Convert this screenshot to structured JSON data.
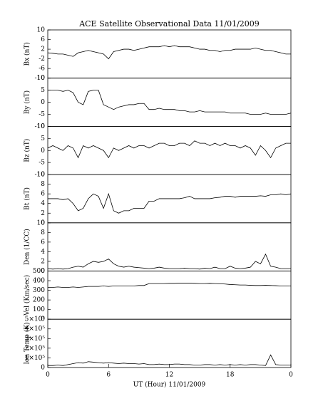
{
  "chart_data": [
    {
      "type": "line",
      "title": "ACE Satellite Observational Data  11/01/2009",
      "ylabel": "Bx (nT)",
      "xlim": [
        0,
        24
      ],
      "ylim": [
        -10,
        10
      ],
      "yticks": [
        -10,
        -6,
        -2,
        2,
        6,
        10
      ],
      "x": [
        0,
        0.5,
        1,
        1.5,
        2,
        2.5,
        3,
        3.5,
        4,
        4.5,
        5,
        5.5,
        6,
        6.5,
        7,
        7.5,
        8,
        8.5,
        9,
        9.5,
        10,
        10.5,
        11,
        11.5,
        12,
        12.5,
        13,
        13.5,
        14,
        14.5,
        15,
        15.5,
        16,
        16.5,
        17,
        17.5,
        18,
        18.5,
        19,
        19.5,
        20,
        20.5,
        21,
        21.5,
        22,
        22.5,
        23,
        23.5,
        24
      ],
      "series": [
        {
          "color": "#000000",
          "values": [
            0.5,
            0.3,
            0,
            0,
            -0.5,
            -1,
            0.5,
            1,
            1.5,
            1,
            0.5,
            0,
            -2,
            1,
            1.5,
            2,
            2,
            1.5,
            2,
            2.5,
            3,
            3,
            3,
            3.5,
            3,
            3.5,
            3,
            3,
            3,
            2.5,
            2,
            2,
            1.5,
            1.5,
            1,
            1.5,
            1.5,
            2,
            2,
            2,
            2,
            2.5,
            2,
            1.5,
            1.5,
            1,
            0.5,
            0,
            0
          ]
        }
      ]
    },
    {
      "type": "line",
      "ylabel": "By (nT)",
      "xlim": [
        0,
        24
      ],
      "ylim": [
        -10,
        10
      ],
      "yticks": [
        -10,
        -5,
        0,
        5,
        10
      ],
      "x": [
        0,
        0.5,
        1,
        1.5,
        2,
        2.5,
        3,
        3.5,
        4,
        4.5,
        5,
        5.5,
        6,
        6.5,
        7,
        7.5,
        8,
        8.5,
        9,
        9.5,
        10,
        10.5,
        11,
        11.5,
        12,
        12.5,
        13,
        13.5,
        14,
        14.5,
        15,
        15.5,
        16,
        16.5,
        17,
        17.5,
        18,
        18.5,
        19,
        19.5,
        20,
        20.5,
        21,
        21.5,
        22,
        22.5,
        23,
        23.5,
        24
      ],
      "series": [
        {
          "color": "#000000",
          "values": [
            5,
            5,
            5,
            4.5,
            5,
            4,
            0,
            -1,
            4.5,
            5,
            5,
            -1,
            -2,
            -3,
            -2,
            -1.5,
            -1,
            -1,
            -0.5,
            -0.5,
            -3,
            -3,
            -2.5,
            -3,
            -3,
            -3,
            -3.5,
            -3.5,
            -4,
            -4,
            -3.5,
            -4,
            -4,
            -4,
            -4,
            -4,
            -4.5,
            -4.5,
            -4.5,
            -4.5,
            -5,
            -5,
            -5,
            -4.5,
            -5,
            -5,
            -5,
            -5,
            -4.5
          ]
        }
      ]
    },
    {
      "type": "line",
      "ylabel": "Bz (nT)",
      "xlim": [
        0,
        24
      ],
      "ylim": [
        -10,
        10
      ],
      "yticks": [
        -10,
        -5,
        0,
        5,
        10
      ],
      "x": [
        0,
        0.5,
        1,
        1.5,
        2,
        2.5,
        3,
        3.5,
        4,
        4.5,
        5,
        5.5,
        6,
        6.5,
        7,
        7.5,
        8,
        8.5,
        9,
        9.5,
        10,
        10.5,
        11,
        11.5,
        12,
        12.5,
        13,
        13.5,
        14,
        14.5,
        15,
        15.5,
        16,
        16.5,
        17,
        17.5,
        18,
        18.5,
        19,
        19.5,
        20,
        20.5,
        21,
        21.5,
        22,
        22.5,
        23,
        23.5,
        24
      ],
      "series": [
        {
          "color": "#000000",
          "values": [
            1,
            2,
            1,
            0,
            2,
            1,
            -3,
            2,
            1,
            2,
            1,
            0,
            -3,
            1,
            0,
            1,
            2,
            1,
            2,
            2,
            1,
            2,
            3,
            3,
            2,
            2,
            3,
            3,
            2,
            4,
            3,
            3,
            2,
            3,
            2,
            3,
            2,
            2,
            1,
            2,
            1,
            -2,
            2,
            0,
            -3,
            1,
            2,
            3,
            3
          ]
        }
      ]
    },
    {
      "type": "line",
      "ylabel": "Bt (nT)",
      "xlim": [
        0,
        24
      ],
      "ylim": [
        0,
        10
      ],
      "yticks": [
        0,
        2,
        4,
        6,
        8,
        10
      ],
      "x": [
        0,
        0.5,
        1,
        1.5,
        2,
        2.5,
        3,
        3.5,
        4,
        4.5,
        5,
        5.5,
        6,
        6.5,
        7,
        7.5,
        8,
        8.5,
        9,
        9.5,
        10,
        10.5,
        11,
        11.5,
        12,
        12.5,
        13,
        13.5,
        14,
        14.5,
        15,
        15.5,
        16,
        16.5,
        17,
        17.5,
        18,
        18.5,
        19,
        19.5,
        20,
        20.5,
        21,
        21.5,
        22,
        22.5,
        23,
        23.5,
        24
      ],
      "series": [
        {
          "color": "#000000",
          "values": [
            5,
            5,
            5,
            4.8,
            5,
            4,
            2.5,
            3,
            5,
            6,
            5.5,
            3,
            6,
            2.5,
            2,
            2.5,
            2.5,
            3,
            3,
            3,
            4.5,
            4.5,
            5,
            5,
            5,
            5,
            5,
            5.2,
            5.5,
            5,
            5,
            5,
            5,
            5.2,
            5.3,
            5.5,
            5.5,
            5.3,
            5.5,
            5.5,
            5.5,
            5.5,
            5.6,
            5.5,
            5.8,
            5.8,
            6,
            5.8,
            6
          ]
        }
      ]
    },
    {
      "type": "line",
      "ylabel": "Den (1/CC)",
      "xlim": [
        0,
        24
      ],
      "ylim": [
        0,
        10
      ],
      "yticks": [
        0,
        2,
        4,
        6,
        8,
        10
      ],
      "x": [
        0,
        0.5,
        1,
        1.5,
        2,
        2.5,
        3,
        3.5,
        4,
        4.5,
        5,
        5.5,
        6,
        6.5,
        7,
        7.5,
        8,
        8.5,
        9,
        9.5,
        10,
        10.5,
        11,
        11.5,
        12,
        12.5,
        13,
        13.5,
        14,
        14.5,
        15,
        15.5,
        16,
        16.5,
        17,
        17.5,
        18,
        18.5,
        19,
        19.5,
        20,
        20.5,
        21,
        21.5,
        22,
        22.5,
        23,
        23.5,
        24
      ],
      "series": [
        {
          "color": "#000000",
          "values": [
            0.5,
            0.4,
            0.5,
            0.4,
            0.5,
            0.8,
            1,
            0.8,
            1.5,
            2,
            1.8,
            2,
            2.5,
            1.5,
            1,
            0.8,
            1,
            0.8,
            0.7,
            0.6,
            0.5,
            0.6,
            0.8,
            0.6,
            0.5,
            0.5,
            0.5,
            0.6,
            0.5,
            0.5,
            0.4,
            0.6,
            0.5,
            0.8,
            0.5,
            0.5,
            1,
            0.6,
            0.5,
            0.6,
            0.8,
            2,
            1.5,
            3.5,
            1,
            0.8,
            0.5,
            0.5,
            0.5
          ]
        }
      ]
    },
    {
      "type": "line",
      "ylabel": "Vel (Km/sec)",
      "xlim": [
        0,
        24
      ],
      "ylim": [
        0,
        500
      ],
      "yticks": [
        0,
        100,
        200,
        300,
        400,
        500
      ],
      "x": [
        0,
        0.5,
        1,
        1.5,
        2,
        2.5,
        3,
        3.5,
        4,
        4.5,
        5,
        5.5,
        6,
        6.5,
        7,
        7.5,
        8,
        8.5,
        9,
        9.5,
        10,
        10.5,
        11,
        11.5,
        12,
        12.5,
        13,
        13.5,
        14,
        14.5,
        15,
        15.5,
        16,
        16.5,
        17,
        17.5,
        18,
        18.5,
        19,
        19.5,
        20,
        20.5,
        21,
        21.5,
        22,
        22.5,
        23,
        23.5,
        24
      ],
      "series": [
        {
          "color": "#000000",
          "values": [
            330,
            330,
            335,
            330,
            330,
            335,
            330,
            335,
            340,
            340,
            340,
            345,
            340,
            345,
            345,
            345,
            345,
            345,
            350,
            350,
            370,
            370,
            370,
            370,
            372,
            372,
            375,
            375,
            375,
            372,
            370,
            370,
            372,
            370,
            368,
            365,
            360,
            358,
            355,
            355,
            352,
            350,
            350,
            352,
            350,
            348,
            345,
            345,
            345
          ]
        }
      ]
    },
    {
      "type": "line",
      "ylabel": "Ion Temp (K)",
      "xlabel": "UT (Hour)  11/01/2009",
      "xlim": [
        0,
        24
      ],
      "ylim": [
        0,
        500000
      ],
      "yticks": [
        0,
        {
          "value": 100000,
          "label": "1×10⁵"
        },
        {
          "value": 200000,
          "label": "2×10⁵"
        },
        {
          "value": 300000,
          "label": "3×10⁵"
        },
        {
          "value": 400000,
          "label": "4×10⁵"
        },
        {
          "value": 500000,
          "label": "5×10⁵"
        }
      ],
      "xticks": [
        0,
        6,
        12,
        18,
        {
          "value": 24,
          "label": "0"
        }
      ],
      "x": [
        0,
        0.5,
        1,
        1.5,
        2,
        2.5,
        3,
        3.5,
        4,
        4.5,
        5,
        5.5,
        6,
        6.5,
        7,
        7.5,
        8,
        8.5,
        9,
        9.5,
        10,
        10.5,
        11,
        11.5,
        12,
        12.5,
        13,
        13.5,
        14,
        14.5,
        15,
        15.5,
        16,
        16.5,
        17,
        17.5,
        18,
        18.5,
        19,
        19.5,
        20,
        20.5,
        21,
        21.5,
        22,
        22.5,
        23,
        23.5,
        24
      ],
      "series": [
        {
          "color": "#000000",
          "values": [
            20000,
            20000,
            25000,
            20000,
            30000,
            40000,
            50000,
            45000,
            60000,
            55000,
            50000,
            45000,
            50000,
            45000,
            40000,
            45000,
            40000,
            40000,
            35000,
            40000,
            30000,
            30000,
            35000,
            30000,
            30000,
            35000,
            35000,
            30000,
            30000,
            25000,
            25000,
            30000,
            30000,
            25000,
            30000,
            25000,
            30000,
            25000,
            30000,
            25000,
            30000,
            30000,
            25000,
            20000,
            130000,
            30000,
            25000,
            25000,
            25000
          ]
        }
      ]
    }
  ]
}
